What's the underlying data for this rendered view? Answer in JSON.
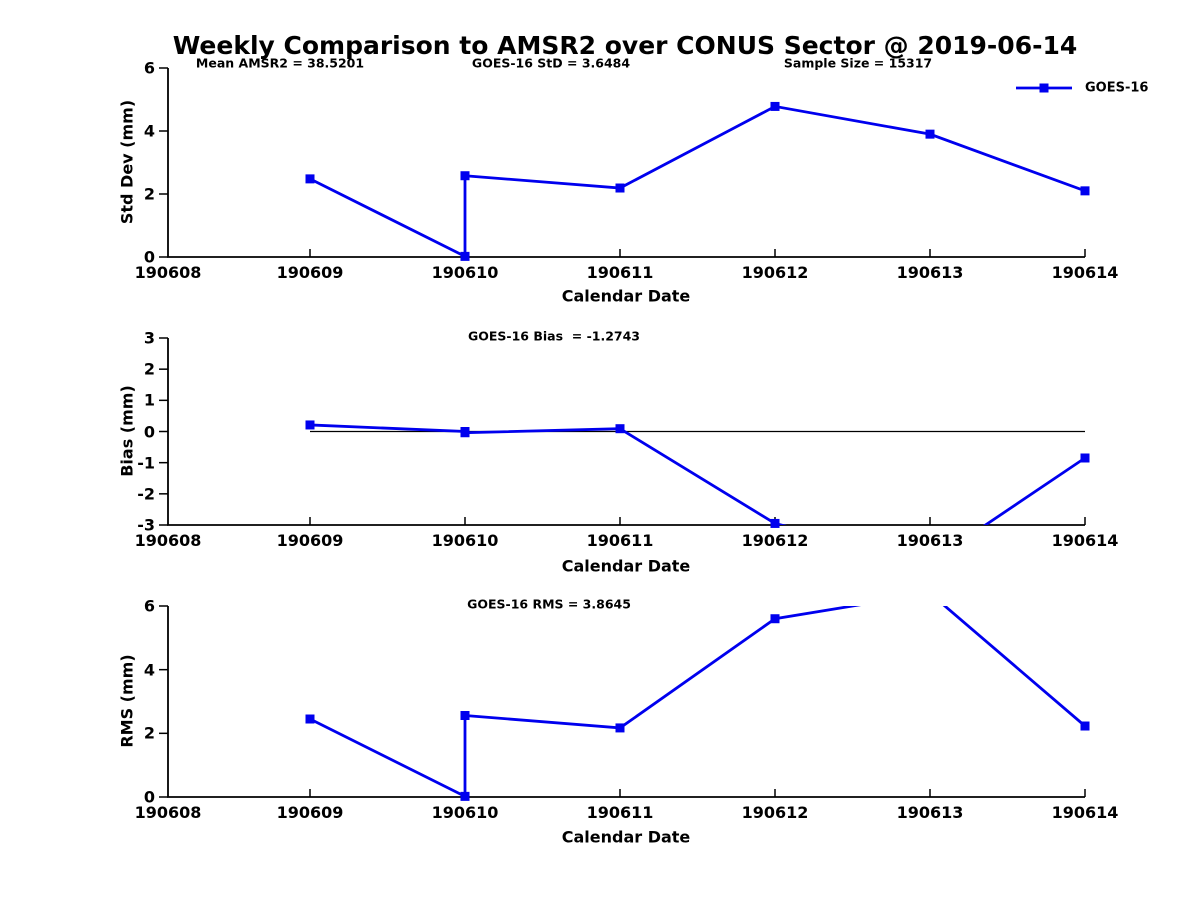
{
  "title": "Weekly Comparison to AMSR2 over CONUS Sector @ 2019-06-14",
  "legend": {
    "label": "GOES-16"
  },
  "colors": {
    "line": "#0000EE",
    "axis": "#000000",
    "text": "#000000"
  },
  "x_axis": {
    "label": "Calendar Date",
    "tick_labels": [
      "190608",
      "190609",
      "190610",
      "190611",
      "190612",
      "190613",
      "190614"
    ]
  },
  "chart_data": [
    {
      "type": "line",
      "series_name": "GOES-16",
      "ylabel": "Std Dev (mm)",
      "ylim": [
        0,
        6
      ],
      "yticks": [
        0,
        2,
        4,
        6
      ],
      "annotations": [
        {
          "text": "Mean AMSR2 = 38.5201"
        },
        {
          "text": "GOES-16 StD = 3.6484"
        },
        {
          "text": "Sample Size = 15317"
        }
      ],
      "x": [
        190609,
        190610,
        190610,
        190611,
        190612,
        190613,
        190614
      ],
      "y": [
        2.48,
        0.02,
        2.58,
        2.19,
        4.78,
        3.9,
        2.1
      ]
    },
    {
      "type": "line",
      "series_name": "GOES-16",
      "ylabel": "Bias (mm)",
      "ylim": [
        -3,
        3
      ],
      "yticks": [
        3,
        2,
        1,
        0,
        -1,
        -2,
        -3
      ],
      "zero_line": true,
      "annotations": [
        {
          "text": "GOES-16 Bias  = -1.2743"
        }
      ],
      "x": [
        190609,
        190610,
        190610,
        190611,
        190612,
        190613,
        190614
      ],
      "y": [
        0.21,
        0.0,
        -0.04,
        0.09,
        -2.95,
        -4.2,
        -0.85
      ]
    },
    {
      "type": "line",
      "series_name": "GOES-16",
      "ylabel": "RMS (mm)",
      "ylim": [
        0,
        6
      ],
      "yticks": [
        0,
        2,
        4,
        6
      ],
      "annotations": [
        {
          "text": "GOES-16 RMS = 3.8645"
        }
      ],
      "x": [
        190609,
        190610,
        190610,
        190611,
        190612,
        190613,
        190614
      ],
      "y": [
        2.45,
        0.02,
        2.56,
        2.17,
        5.6,
        6.4,
        2.23
      ]
    }
  ]
}
